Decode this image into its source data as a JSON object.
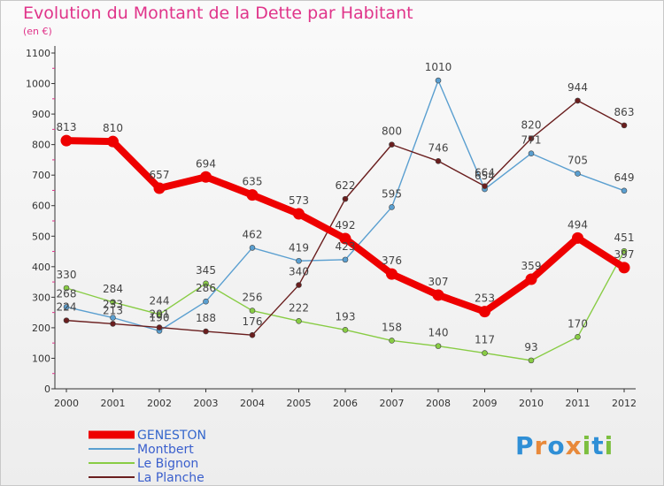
{
  "chart_data": {
    "type": "line",
    "title": "Evolution du Montant de la Dette par Habitant",
    "subtitle": "(en €)",
    "x": [
      "2000",
      "2001",
      "2002",
      "2003",
      "2004",
      "2005",
      "2006",
      "2007",
      "2008",
      "2009",
      "2010",
      "2011",
      "2012"
    ],
    "ylim": [
      0,
      1100
    ],
    "yticks": [
      0,
      100,
      200,
      300,
      400,
      500,
      600,
      700,
      800,
      900,
      1000,
      1100
    ],
    "grid": false,
    "legend_position": "bottom-left",
    "series": [
      {
        "name": "GENESTON",
        "color": "#ee0000",
        "values": [
          813,
          810,
          657,
          694,
          635,
          573,
          492,
          376,
          307,
          253,
          359,
          494,
          397
        ]
      },
      {
        "name": "Montbert",
        "color": "#5a9fd0",
        "values": [
          268,
          233,
          190,
          286,
          462,
          419,
          423,
          595,
          1010,
          654,
          771,
          705,
          649
        ]
      },
      {
        "name": "Le Bignon",
        "color": "#88cc44",
        "values": [
          330,
          284,
          244,
          345,
          256,
          222,
          193,
          158,
          140,
          117,
          93,
          170,
          451
        ]
      },
      {
        "name": "La Planche",
        "color": "#6a1e1e",
        "values": [
          224,
          213,
          201,
          188,
          176,
          340,
          622,
          800,
          746,
          664,
          820,
          944,
          863
        ]
      }
    ]
  },
  "logo": {
    "letters": [
      {
        "ch": "P",
        "color": "#2f8fd6"
      },
      {
        "ch": "r",
        "color": "#e8893a"
      },
      {
        "ch": "o",
        "color": "#2f8fd6"
      },
      {
        "ch": "x",
        "color": "#e8893a"
      },
      {
        "ch": "i",
        "color": "#7cbf3f"
      },
      {
        "ch": "t",
        "color": "#2f8fd6"
      },
      {
        "ch": "i",
        "color": "#7cbf3f"
      }
    ]
  }
}
